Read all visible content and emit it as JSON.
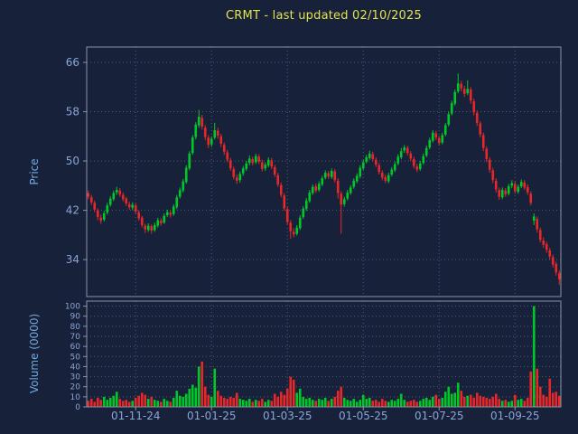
{
  "colors": {
    "background": "#18213a",
    "title": "#e3e34c",
    "axis_label": "#6fa8dc",
    "tick_label": "#8aa5d6",
    "grid": "#4e5c78",
    "frame": "#8a93a8",
    "up": "#00c828",
    "down": "#e82828"
  },
  "chart_data": {
    "type": "candlestick",
    "title": "CRMT - last updated 02/10/2025",
    "price_axis": {
      "label": "Price",
      "ticks": [
        34,
        42,
        50,
        58,
        66
      ],
      "range": [
        28.0,
        68.5
      ]
    },
    "volume_axis": {
      "label": "Volume (0000)",
      "ticks": [
        0,
        10,
        20,
        30,
        40,
        50,
        60,
        70,
        80,
        90,
        100
      ],
      "range": [
        0,
        105
      ]
    },
    "x_axis": {
      "tick_labels": [
        "01-11-24",
        "01-01-25",
        "01-03-25",
        "01-05-25",
        "01-07-25",
        "01-09-25"
      ],
      "tick_indices": [
        15,
        39,
        63,
        87,
        111,
        135
      ]
    },
    "candles_format": [
      "open",
      "high",
      "low",
      "close",
      "volume"
    ],
    "candles": [
      [
        44.8,
        45.2,
        43.8,
        44.2,
        6
      ],
      [
        44.1,
        44.5,
        42.9,
        43.3,
        8
      ],
      [
        43.2,
        43.6,
        41.7,
        42.1,
        5
      ],
      [
        42.0,
        42.3,
        40.4,
        40.9,
        9
      ],
      [
        40.8,
        41.3,
        39.8,
        40.3,
        7
      ],
      [
        40.5,
        41.9,
        40.2,
        41.5,
        10
      ],
      [
        41.6,
        43.2,
        41.3,
        42.8,
        7
      ],
      [
        42.9,
        44.3,
        42.6,
        43.9,
        9
      ],
      [
        43.8,
        45.2,
        43.5,
        44.8,
        11
      ],
      [
        44.9,
        45.8,
        44.5,
        45.3,
        15
      ],
      [
        45.2,
        45.6,
        44.2,
        44.6,
        8
      ],
      [
        44.5,
        44.9,
        43.4,
        43.8,
        6
      ],
      [
        43.9,
        44.2,
        42.7,
        43.1,
        7
      ],
      [
        43.0,
        43.4,
        42.1,
        42.5,
        5
      ],
      [
        42.4,
        43.3,
        42.0,
        42.9,
        6
      ],
      [
        42.8,
        43.1,
        41.4,
        41.8,
        9
      ],
      [
        41.7,
        42.0,
        40.3,
        40.7,
        11
      ],
      [
        40.8,
        41.1,
        39.2,
        39.6,
        14
      ],
      [
        39.5,
        39.8,
        38.3,
        38.9,
        12
      ],
      [
        38.8,
        39.9,
        38.5,
        39.5,
        8
      ],
      [
        39.4,
        39.7,
        38.2,
        38.7,
        10
      ],
      [
        38.8,
        40.0,
        38.5,
        39.6,
        7
      ],
      [
        39.5,
        40.8,
        39.2,
        40.4,
        6
      ],
      [
        40.3,
        40.7,
        39.5,
        39.9,
        5
      ],
      [
        40.0,
        41.5,
        39.8,
        41.1,
        8
      ],
      [
        41.2,
        42.1,
        40.9,
        41.7,
        6
      ],
      [
        41.6,
        41.9,
        40.8,
        41.3,
        5
      ],
      [
        41.4,
        43.0,
        41.1,
        42.6,
        9
      ],
      [
        42.5,
        44.5,
        42.2,
        44.1,
        16
      ],
      [
        44.2,
        45.7,
        43.9,
        45.3,
        11
      ],
      [
        45.2,
        47.1,
        44.9,
        46.7,
        10
      ],
      [
        46.6,
        49.3,
        46.3,
        48.9,
        13
      ],
      [
        48.8,
        51.6,
        48.5,
        51.2,
        18
      ],
      [
        51.3,
        54.2,
        51.0,
        53.8,
        22
      ],
      [
        53.9,
        56.3,
        53.5,
        55.9,
        19
      ],
      [
        55.8,
        58.3,
        55.4,
        57.2,
        40
      ],
      [
        57.0,
        57.5,
        55.1,
        55.6,
        45
      ],
      [
        55.4,
        55.8,
        53.4,
        53.9,
        20
      ],
      [
        53.8,
        54.2,
        52.1,
        52.6,
        12
      ],
      [
        52.7,
        54.0,
        52.3,
        53.6,
        10
      ],
      [
        53.8,
        56.2,
        53.5,
        55.0,
        38
      ],
      [
        54.9,
        55.4,
        53.6,
        54.1,
        16
      ],
      [
        54.0,
        54.4,
        52.3,
        52.8,
        11
      ],
      [
        52.6,
        53.0,
        51.0,
        51.5,
        9
      ],
      [
        51.4,
        51.8,
        49.8,
        50.2,
        8
      ],
      [
        50.1,
        50.5,
        48.4,
        48.8,
        10
      ],
      [
        48.7,
        49.1,
        47.0,
        47.4,
        9
      ],
      [
        47.3,
        47.8,
        46.3,
        46.8,
        14
      ],
      [
        46.9,
        48.3,
        46.5,
        47.9,
        8
      ],
      [
        48.0,
        49.2,
        47.6,
        48.8,
        7
      ],
      [
        48.7,
        50.0,
        48.4,
        49.6,
        6
      ],
      [
        49.7,
        50.9,
        49.3,
        50.4,
        8
      ],
      [
        50.3,
        50.7,
        49.3,
        49.7,
        5
      ],
      [
        49.8,
        51.2,
        49.5,
        50.8,
        7
      ],
      [
        50.7,
        51.1,
        49.5,
        49.9,
        6
      ],
      [
        49.8,
        50.2,
        48.3,
        48.7,
        8
      ],
      [
        48.8,
        49.8,
        48.4,
        49.4,
        5
      ],
      [
        49.3,
        50.6,
        49.0,
        50.2,
        7
      ],
      [
        50.1,
        50.5,
        48.7,
        49.1,
        6
      ],
      [
        49.0,
        49.4,
        47.4,
        47.8,
        13
      ],
      [
        47.7,
        48.1,
        45.8,
        46.2,
        10
      ],
      [
        46.1,
        46.5,
        44.1,
        44.5,
        15
      ],
      [
        44.4,
        44.8,
        41.9,
        42.3,
        12
      ],
      [
        42.2,
        42.6,
        39.7,
        40.1,
        18
      ],
      [
        40.0,
        40.4,
        37.4,
        38.6,
        30
      ],
      [
        38.5,
        39.1,
        37.6,
        38.1,
        27
      ],
      [
        38.2,
        39.6,
        37.9,
        39.2,
        14
      ],
      [
        39.1,
        41.2,
        38.8,
        40.8,
        18
      ],
      [
        40.9,
        42.7,
        40.6,
        42.3,
        10
      ],
      [
        42.2,
        44.0,
        41.9,
        43.6,
        8
      ],
      [
        43.5,
        45.3,
        43.2,
        44.9,
        9
      ],
      [
        44.8,
        46.2,
        44.5,
        45.8,
        7
      ],
      [
        45.9,
        46.3,
        44.8,
        45.2,
        6
      ],
      [
        45.3,
        46.7,
        45.0,
        46.3,
        8
      ],
      [
        46.2,
        47.6,
        45.9,
        47.2,
        7
      ],
      [
        47.3,
        48.5,
        47.0,
        48.1,
        9
      ],
      [
        48.0,
        48.4,
        47.1,
        47.5,
        6
      ],
      [
        47.4,
        48.8,
        47.1,
        48.4,
        8
      ],
      [
        48.3,
        48.7,
        46.5,
        46.9,
        10
      ],
      [
        46.8,
        47.2,
        43.9,
        44.8,
        16
      ],
      [
        44.7,
        45.1,
        38.2,
        42.9,
        20
      ],
      [
        43.0,
        44.2,
        42.6,
        43.8,
        9
      ],
      [
        43.9,
        45.3,
        43.6,
        44.9,
        7
      ],
      [
        44.8,
        46.1,
        44.5,
        45.7,
        6
      ],
      [
        45.8,
        47.2,
        45.5,
        46.8,
        8
      ],
      [
        46.7,
        48.0,
        46.4,
        47.6,
        5
      ],
      [
        47.5,
        49.3,
        47.2,
        48.9,
        7
      ],
      [
        48.8,
        50.2,
        48.5,
        49.8,
        12
      ],
      [
        49.9,
        51.0,
        49.6,
        50.6,
        8
      ],
      [
        50.5,
        51.7,
        50.2,
        51.2,
        9
      ],
      [
        51.1,
        51.5,
        49.9,
        50.3,
        6
      ],
      [
        50.2,
        50.6,
        49.0,
        49.4,
        7
      ],
      [
        49.3,
        49.7,
        47.8,
        48.2,
        5
      ],
      [
        48.1,
        48.5,
        46.9,
        47.3,
        8
      ],
      [
        47.4,
        47.8,
        46.4,
        46.8,
        6
      ],
      [
        46.7,
        48.1,
        46.4,
        47.7,
        5
      ],
      [
        47.8,
        49.0,
        47.5,
        48.6,
        7
      ],
      [
        48.5,
        49.9,
        48.2,
        49.5,
        6
      ],
      [
        49.6,
        51.1,
        49.3,
        50.7,
        8
      ],
      [
        50.6,
        52.1,
        50.3,
        51.6,
        13
      ],
      [
        51.7,
        52.6,
        51.3,
        52.2,
        7
      ],
      [
        52.1,
        52.5,
        50.9,
        51.3,
        5
      ],
      [
        51.2,
        51.6,
        50.0,
        50.4,
        6
      ],
      [
        50.3,
        50.7,
        48.8,
        49.2,
        7
      ],
      [
        49.1,
        49.5,
        48.2,
        48.6,
        5
      ],
      [
        48.7,
        50.0,
        48.4,
        49.6,
        6
      ],
      [
        49.7,
        51.2,
        49.4,
        50.8,
        8
      ],
      [
        50.9,
        52.5,
        50.6,
        52.1,
        9
      ],
      [
        52.2,
        53.8,
        51.9,
        53.4,
        7
      ],
      [
        53.3,
        55.0,
        53.0,
        54.6,
        10
      ],
      [
        54.5,
        54.9,
        53.4,
        53.8,
        12
      ],
      [
        53.7,
        54.1,
        52.5,
        52.9,
        8
      ],
      [
        53.0,
        54.6,
        52.7,
        54.2,
        9
      ],
      [
        54.3,
        56.2,
        54.0,
        55.8,
        15
      ],
      [
        55.9,
        58.0,
        55.6,
        57.6,
        20
      ],
      [
        57.7,
        59.8,
        57.4,
        59.4,
        13
      ],
      [
        59.3,
        61.6,
        59.0,
        61.2,
        14
      ],
      [
        61.3,
        64.2,
        61.0,
        62.6,
        24
      ],
      [
        62.5,
        63.0,
        61.3,
        61.8,
        16
      ],
      [
        61.7,
        62.2,
        60.4,
        60.9,
        10
      ],
      [
        61.0,
        63.1,
        60.7,
        61.7,
        11
      ],
      [
        61.6,
        62.0,
        59.3,
        59.8,
        12
      ],
      [
        59.7,
        60.1,
        57.4,
        57.9,
        9
      ],
      [
        57.8,
        58.2,
        55.7,
        56.2,
        14
      ],
      [
        56.1,
        56.5,
        53.8,
        54.3,
        11
      ],
      [
        54.2,
        54.6,
        51.6,
        52.1,
        10
      ],
      [
        52.0,
        52.4,
        49.8,
        50.3,
        9
      ],
      [
        50.2,
        50.6,
        48.1,
        48.6,
        8
      ],
      [
        48.5,
        48.9,
        46.4,
        46.9,
        10
      ],
      [
        46.8,
        47.2,
        44.9,
        45.4,
        13
      ],
      [
        45.3,
        45.7,
        43.7,
        44.2,
        8
      ],
      [
        44.1,
        45.7,
        43.8,
        45.3,
        6
      ],
      [
        45.2,
        45.6,
        44.2,
        44.6,
        7
      ],
      [
        44.7,
        46.3,
        44.4,
        45.9,
        5
      ],
      [
        46.0,
        46.9,
        45.6,
        46.4,
        6
      ],
      [
        46.3,
        46.7,
        44.7,
        45.1,
        12
      ],
      [
        45.0,
        46.2,
        44.7,
        45.8,
        7
      ],
      [
        45.9,
        47.0,
        45.6,
        46.6,
        8
      ],
      [
        46.5,
        46.9,
        45.3,
        45.7,
        6
      ],
      [
        45.8,
        46.2,
        44.5,
        44.9,
        9
      ],
      [
        44.7,
        45.1,
        42.8,
        43.2,
        35
      ],
      [
        40.3,
        41.5,
        39.6,
        41.0,
        100
      ],
      [
        40.6,
        41.0,
        38.4,
        38.9,
        38
      ],
      [
        38.8,
        39.2,
        36.8,
        37.2,
        20
      ],
      [
        37.1,
        37.6,
        35.9,
        36.4,
        12
      ],
      [
        36.5,
        36.9,
        35.1,
        35.6,
        10
      ],
      [
        35.5,
        35.9,
        34.0,
        34.5,
        28
      ],
      [
        34.4,
        34.8,
        32.7,
        33.2,
        14
      ],
      [
        33.3,
        33.7,
        31.4,
        31.9,
        15
      ],
      [
        31.8,
        32.2,
        29.9,
        30.8,
        11
      ]
    ]
  }
}
